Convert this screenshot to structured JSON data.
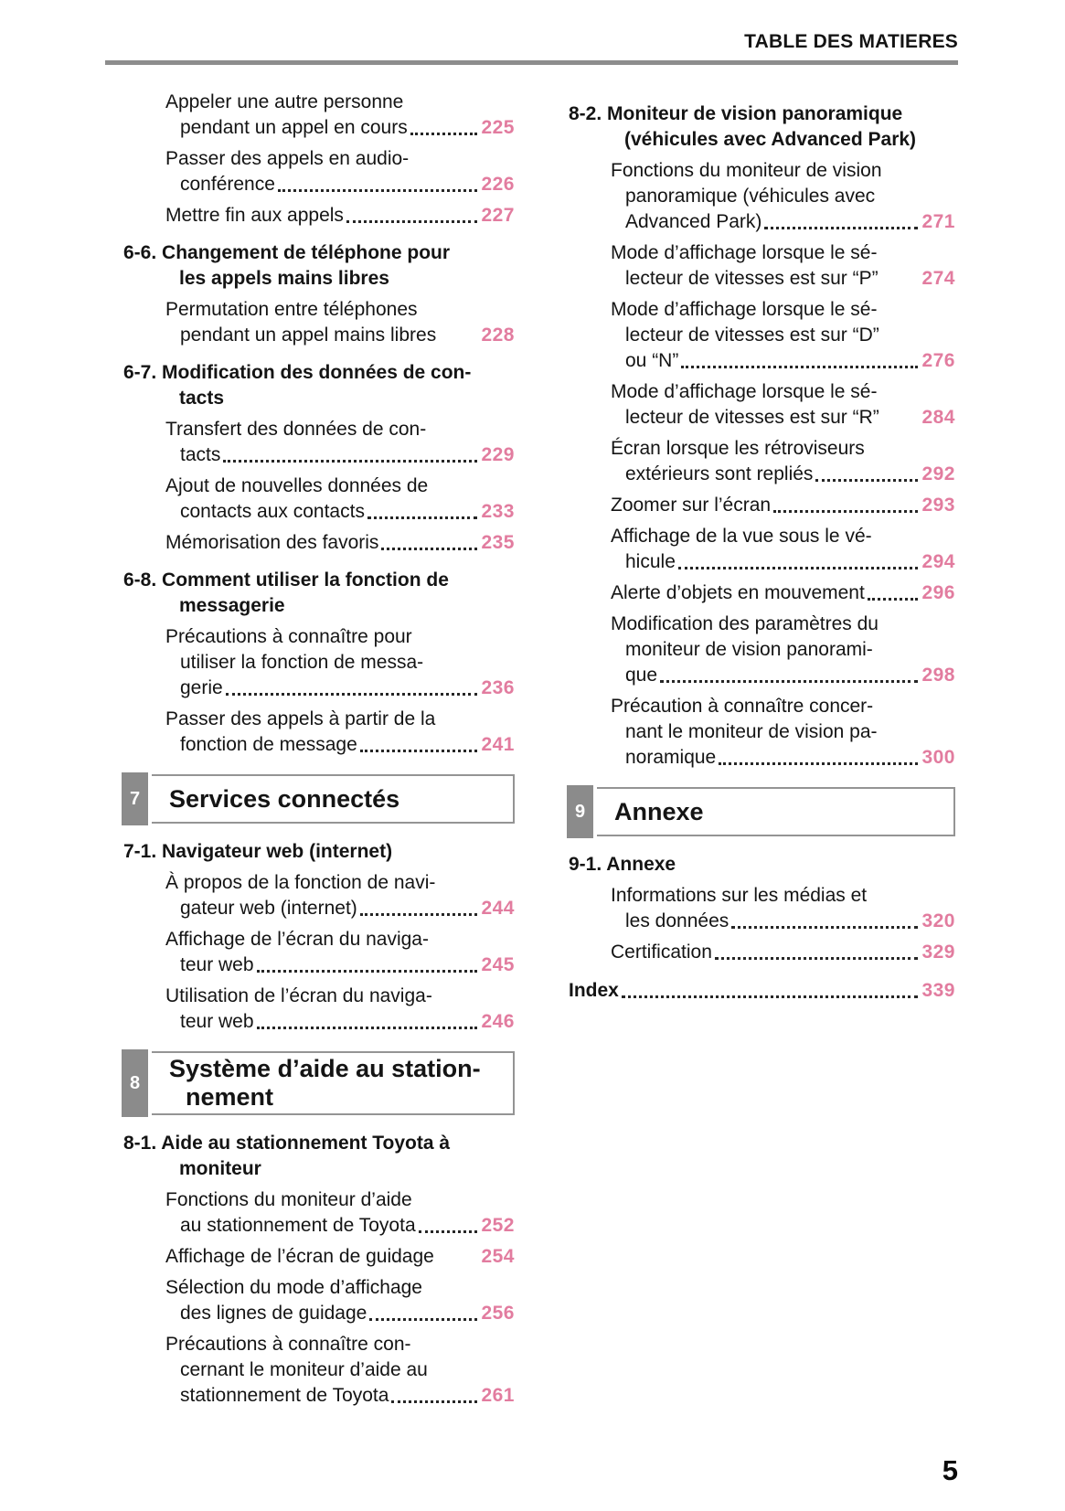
{
  "header": {
    "title": "TABLE DES MATIERES"
  },
  "footer": {
    "page_number": "5"
  },
  "colors": {
    "accent_pink": "#e27c9f",
    "badge_gray": "#8b8b8b",
    "rule_gray": "#8d8d8d"
  },
  "columns": {
    "left": [
      {
        "type": "item",
        "lines": [
          "Appeler une autre personne"
        ],
        "tail": "pendant un appel en cours",
        "dots": true,
        "page": "225"
      },
      {
        "type": "item",
        "lines": [
          "Passer des appels en audio-"
        ],
        "tail": "conférence",
        "dots": true,
        "page": "226"
      },
      {
        "type": "item",
        "lines": [],
        "tail": "Mettre fin aux appels",
        "dots": true,
        "page": "227"
      },
      {
        "type": "section",
        "label": "6-6.",
        "lines": [
          "Changement de téléphone pour",
          "les appels mains libres"
        ]
      },
      {
        "type": "item",
        "lines": [
          "Permutation entre téléphones"
        ],
        "tail": "pendant un appel mains libres",
        "dots": false,
        "page": "228"
      },
      {
        "type": "section",
        "label": "6-7.",
        "lines": [
          "Modification des données de con-",
          "tacts"
        ]
      },
      {
        "type": "item",
        "lines": [
          "Transfert des données de con-"
        ],
        "tail": "tacts",
        "dots": true,
        "page": "229"
      },
      {
        "type": "item",
        "lines": [
          "Ajout de nouvelles données de"
        ],
        "tail": "contacts aux contacts",
        "dots": true,
        "page": "233"
      },
      {
        "type": "item",
        "lines": [],
        "tail": "Mémorisation des favoris",
        "dots": true,
        "page": "235"
      },
      {
        "type": "section",
        "label": "6-8.",
        "lines": [
          "Comment utiliser la fonction de",
          "messagerie"
        ]
      },
      {
        "type": "item",
        "lines": [
          "Précautions à connaître pour",
          "utiliser la fonction de messa-"
        ],
        "tail": "gerie",
        "dots": true,
        "page": "236"
      },
      {
        "type": "item",
        "lines": [
          "Passer des appels à partir de la"
        ],
        "tail": "fonction de message",
        "dots": true,
        "page": "241"
      },
      {
        "type": "chapter",
        "num": "7",
        "title_lines": [
          "Services connectés"
        ]
      },
      {
        "type": "section",
        "label": "7-1.",
        "lines": [
          "Navigateur web (internet)"
        ]
      },
      {
        "type": "item",
        "lines": [
          "À propos de la fonction de navi-"
        ],
        "tail": "gateur web (internet)",
        "dots": true,
        "page": "244"
      },
      {
        "type": "item",
        "lines": [
          "Affichage de l’écran du naviga-"
        ],
        "tail": "teur web",
        "dots": true,
        "page": "245"
      },
      {
        "type": "item",
        "lines": [
          "Utilisation de l’écran du naviga-"
        ],
        "tail": "teur web",
        "dots": true,
        "page": "246"
      },
      {
        "type": "chapter",
        "num": "8",
        "title_lines": [
          "Système d’aide au station-",
          "nement"
        ]
      },
      {
        "type": "section",
        "label": "8-1.",
        "lines": [
          "Aide au stationnement Toyota à",
          "moniteur"
        ]
      },
      {
        "type": "item",
        "lines": [
          "Fonctions du moniteur d’aide"
        ],
        "tail": "au stationnement de Toyota",
        "dots": true,
        "page": "252"
      },
      {
        "type": "item",
        "lines": [],
        "tail": "Affichage de l’écran de guidage",
        "dots": false,
        "page": "254"
      },
      {
        "type": "item",
        "lines": [
          "Sélection du mode d’affichage"
        ],
        "tail": "des lignes de guidage",
        "dots": true,
        "page": "256"
      },
      {
        "type": "item",
        "lines": [
          "Précautions à connaître con-",
          "cernant le moniteur d’aide au"
        ],
        "tail": "stationnement de Toyota",
        "dots": true,
        "page": "261"
      }
    ],
    "right": [
      {
        "type": "section",
        "label": "8-2.",
        "lines": [
          "Moniteur de vision panoramique",
          "(véhicules avec Advanced Park)"
        ]
      },
      {
        "type": "item",
        "lines": [
          "Fonctions du moniteur de vision",
          "panoramique (véhicules avec"
        ],
        "tail": "Advanced Park)",
        "dots": true,
        "page": "271"
      },
      {
        "type": "item",
        "lines": [
          "Mode d’affichage lorsque le sé-"
        ],
        "tail": "lecteur de vitesses est sur “P”",
        "dots": false,
        "page": "274"
      },
      {
        "type": "item",
        "lines": [
          "Mode d’affichage lorsque le sé-",
          "lecteur de vitesses est sur “D”"
        ],
        "tail": "ou “N”",
        "dots": true,
        "page": "276"
      },
      {
        "type": "item",
        "lines": [
          "Mode d’affichage lorsque le sé-"
        ],
        "tail": "lecteur de vitesses est sur “R”",
        "dots": false,
        "page": "284"
      },
      {
        "type": "item",
        "lines": [
          "Écran lorsque les rétroviseurs"
        ],
        "tail": "extérieurs sont repliés",
        "dots": true,
        "page": "292"
      },
      {
        "type": "item",
        "lines": [],
        "tail": "Zoomer sur l’écran",
        "dots": true,
        "page": "293"
      },
      {
        "type": "item",
        "lines": [
          "Affichage de la vue sous le vé-"
        ],
        "tail": "hicule",
        "dots": true,
        "page": "294"
      },
      {
        "type": "item",
        "lines": [],
        "tail": "Alerte d’objets en mouvement",
        "dots": true,
        "page": "296"
      },
      {
        "type": "item",
        "lines": [
          "Modification des paramètres du",
          "moniteur de vision panorami-"
        ],
        "tail": "que",
        "dots": true,
        "page": "298"
      },
      {
        "type": "item",
        "lines": [
          "Précaution à connaître concer-",
          "nant le moniteur de vision pa-"
        ],
        "tail": "noramique",
        "dots": true,
        "page": "300"
      },
      {
        "type": "chapter",
        "num": "9",
        "title_lines": [
          "Annexe"
        ]
      },
      {
        "type": "section",
        "label": "9-1.",
        "lines": [
          "Annexe"
        ]
      },
      {
        "type": "item",
        "lines": [
          "Informations sur les médias et"
        ],
        "tail": "les données",
        "dots": true,
        "page": "320"
      },
      {
        "type": "item",
        "lines": [],
        "tail": "Certification",
        "dots": true,
        "page": "329"
      },
      {
        "type": "index",
        "text": "Index",
        "dots": true,
        "page": "339"
      }
    ]
  }
}
